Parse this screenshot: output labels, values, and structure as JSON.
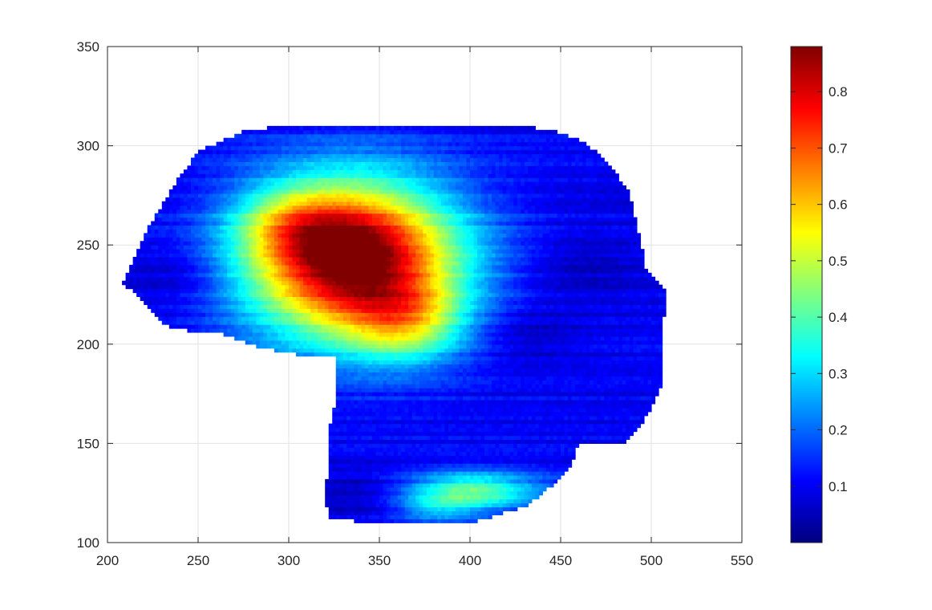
{
  "chart_data": {
    "type": "heatmap",
    "title": "",
    "xlabel": "",
    "ylabel": "",
    "xlim": [
      200,
      550
    ],
    "ylim": [
      100,
      350
    ],
    "xticks": [
      200,
      250,
      300,
      350,
      400,
      450,
      500,
      550
    ],
    "yticks": [
      100,
      150,
      200,
      250,
      300,
      350
    ],
    "grid": true,
    "colormap": "jet",
    "colorbar": {
      "position": "right",
      "range": [
        0,
        0.88
      ],
      "ticks": [
        0.1,
        0.2,
        0.3,
        0.4,
        0.5,
        0.6,
        0.7,
        0.8
      ]
    },
    "background_value": 0.1,
    "outline": [
      [
        208,
        231
      ],
      [
        215,
        244
      ],
      [
        222,
        258
      ],
      [
        235,
        278
      ],
      [
        250,
        297
      ],
      [
        275,
        307
      ],
      [
        300,
        311
      ],
      [
        360,
        311
      ],
      [
        420,
        311
      ],
      [
        445,
        308
      ],
      [
        462,
        302
      ],
      [
        475,
        293
      ],
      [
        487,
        278
      ],
      [
        491,
        265
      ],
      [
        494,
        252
      ],
      [
        497,
        238
      ],
      [
        508,
        228
      ],
      [
        506,
        200
      ],
      [
        505,
        177
      ],
      [
        495,
        160
      ],
      [
        485,
        150
      ],
      [
        460,
        150
      ],
      [
        455,
        138
      ],
      [
        450,
        132
      ],
      [
        430,
        118
      ],
      [
        400,
        110
      ],
      [
        350,
        110
      ],
      [
        322,
        112
      ],
      [
        320,
        125
      ],
      [
        322,
        140
      ],
      [
        322,
        155
      ],
      [
        327,
        175
      ],
      [
        327,
        193
      ],
      [
        305,
        195
      ],
      [
        285,
        198
      ],
      [
        265,
        205
      ],
      [
        245,
        207
      ],
      [
        230,
        210
      ],
      [
        220,
        222
      ],
      [
        212,
        228
      ]
    ],
    "hot_spots": [
      {
        "x": 335,
        "y": 243,
        "sx": 42,
        "sy": 28,
        "peak": 0.78
      },
      {
        "x": 330,
        "y": 250,
        "sx": 25,
        "sy": 18,
        "peak": 0.1
      },
      {
        "x": 365,
        "y": 212,
        "sx": 22,
        "sy": 14,
        "peak": 0.25
      },
      {
        "x": 300,
        "y": 262,
        "sx": 20,
        "sy": 12,
        "peak": 0.15
      },
      {
        "x": 400,
        "y": 126,
        "sx": 28,
        "sy": 7,
        "peak": 0.32
      },
      {
        "x": 380,
        "y": 117,
        "sx": 16,
        "sy": 5,
        "peak": 0.12
      }
    ],
    "cold_spots": [
      {
        "x": 430,
        "y": 205,
        "sx": 20,
        "sy": 10,
        "depth": 0.06
      },
      {
        "x": 345,
        "y": 125,
        "sx": 25,
        "sy": 8,
        "depth": 0.07
      },
      {
        "x": 240,
        "y": 235,
        "sx": 20,
        "sy": 12,
        "depth": 0.06
      },
      {
        "x": 460,
        "y": 240,
        "sx": 25,
        "sy": 12,
        "depth": 0.05
      }
    ]
  }
}
